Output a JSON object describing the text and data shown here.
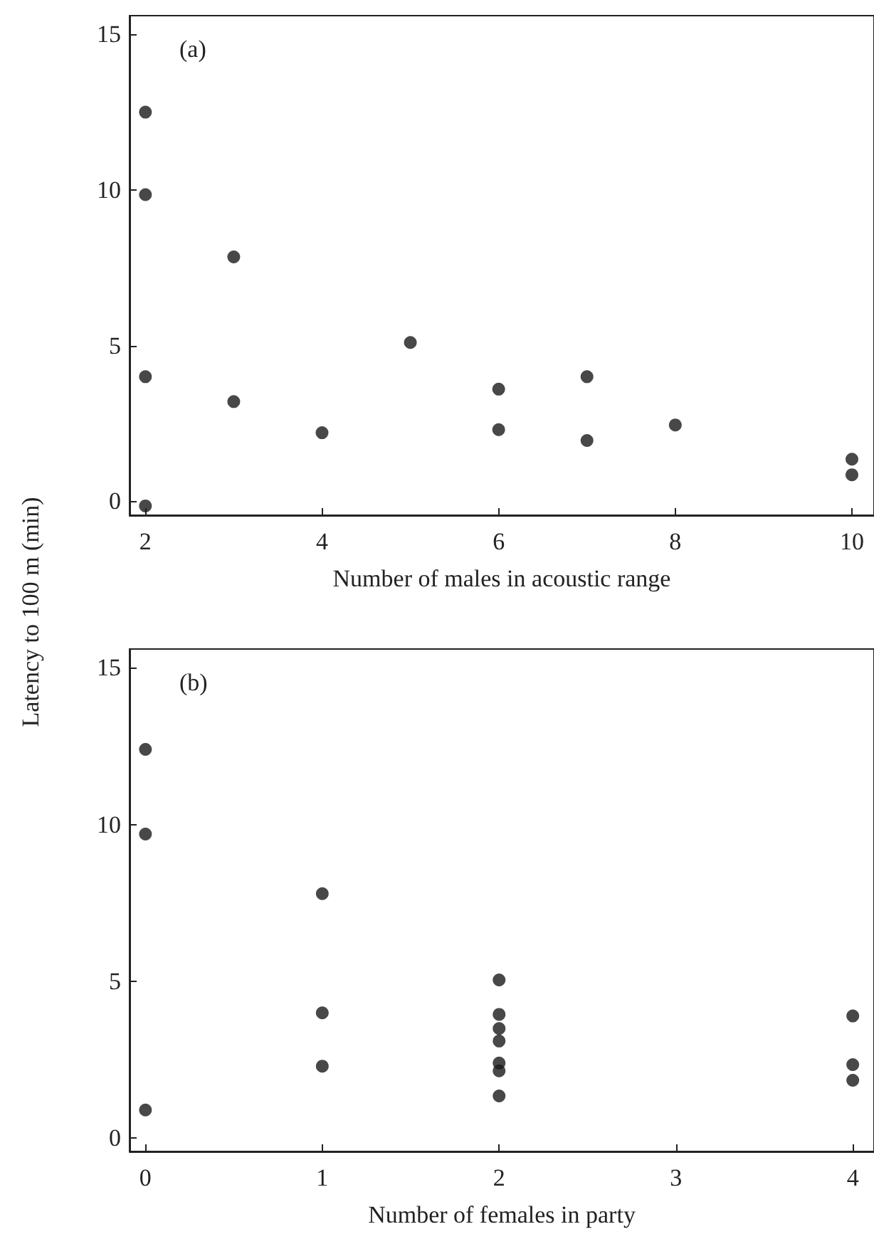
{
  "chart_data": [
    {
      "type": "scatter",
      "title": "(a)",
      "xlabel": "Number of males in acoustic range",
      "ylabel": "Latency to 100 m (min)",
      "x": [
        2,
        2,
        2,
        2,
        3,
        3,
        4,
        5,
        6,
        6,
        7,
        7,
        8,
        10,
        10
      ],
      "values": [
        12.5,
        9.85,
        4.0,
        -0.15,
        7.85,
        3.2,
        2.2,
        5.1,
        3.6,
        2.3,
        4.0,
        1.95,
        2.45,
        1.35,
        0.85
      ],
      "color": "#1a1a1a",
      "marker": "circle",
      "grid": false,
      "xlim": [
        1.82,
        10.25
      ],
      "xticks": [
        2,
        4,
        6,
        8,
        10
      ],
      "ylim": [
        -0.45,
        15.6
      ],
      "yticks": [
        0,
        5,
        10,
        15
      ]
    },
    {
      "type": "scatter",
      "title": "(b)",
      "xlabel": "Number of females in party",
      "x": [
        0,
        0,
        0,
        1,
        1,
        1,
        2,
        2,
        2,
        2,
        2,
        2,
        2,
        4,
        4,
        4
      ],
      "values": [
        12.4,
        9.7,
        0.9,
        7.8,
        4.0,
        2.3,
        5.05,
        3.95,
        3.5,
        3.1,
        2.4,
        2.15,
        1.35,
        3.9,
        2.35,
        1.85
      ],
      "color": "#1a1a1a",
      "marker": "circle",
      "grid": false,
      "xlim": [
        -0.09,
        4.12
      ],
      "xticks": [
        0,
        1,
        2,
        3,
        4
      ],
      "ylim": [
        -0.42,
        15.6
      ],
      "yticks": [
        0,
        5,
        10,
        15
      ]
    }
  ]
}
